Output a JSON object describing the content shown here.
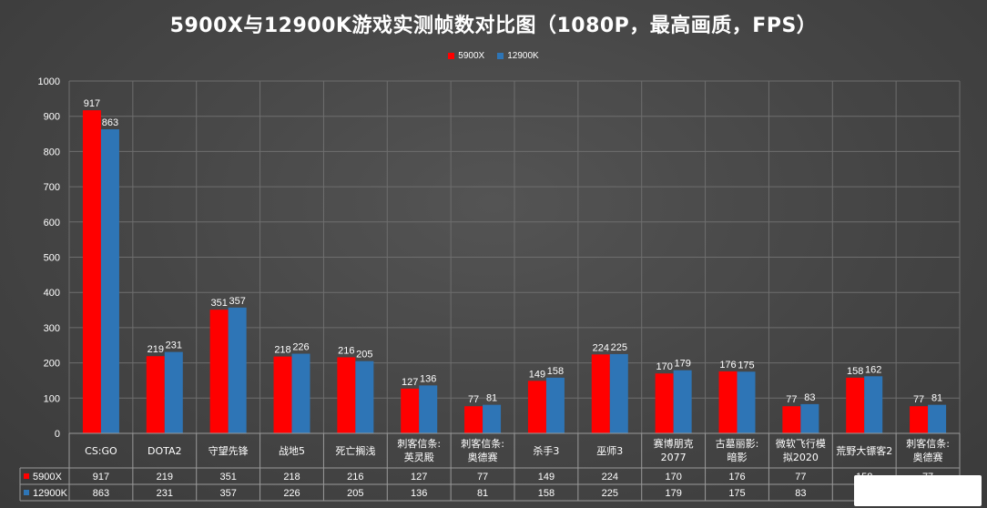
{
  "chart_data": {
    "type": "bar",
    "title": "5900X与12900K游戏实测帧数对比图（1080P，最高画质，FPS）",
    "categories": [
      [
        "CS:GO"
      ],
      [
        "DOTA2"
      ],
      [
        "守望先锋"
      ],
      [
        "战地5"
      ],
      [
        "死亡搁浅"
      ],
      [
        "刺客信条:",
        "英灵殿"
      ],
      [
        "刺客信条:",
        "奥德赛"
      ],
      [
        "杀手3"
      ],
      [
        "巫师3"
      ],
      [
        "赛博朋克",
        "2077"
      ],
      [
        "古墓丽影:",
        "暗影"
      ],
      [
        "微软飞行模",
        "拟2020"
      ],
      [
        "荒野大镖客2"
      ],
      [
        "刺客信条:",
        "奥德赛"
      ]
    ],
    "series": [
      {
        "name": "5900X",
        "color": "#ff0000",
        "values": [
          917,
          219,
          351,
          218,
          216,
          127,
          77,
          149,
          224,
          170,
          176,
          77,
          158,
          77
        ]
      },
      {
        "name": "12900K",
        "color": "#2e75b6",
        "values": [
          863,
          231,
          357,
          226,
          205,
          136,
          81,
          158,
          225,
          179,
          175,
          83,
          162,
          81
        ]
      }
    ],
    "yticks": [
      0,
      100,
      200,
      300,
      400,
      500,
      600,
      700,
      800,
      900,
      1000
    ],
    "ylim": [
      0,
      1000
    ],
    "grid": true,
    "legend": "top-center",
    "data_table": true
  }
}
